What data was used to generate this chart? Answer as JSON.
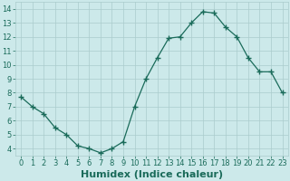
{
  "x": [
    0,
    1,
    2,
    3,
    4,
    5,
    6,
    7,
    8,
    9,
    10,
    11,
    12,
    13,
    14,
    15,
    16,
    17,
    18,
    19,
    20,
    21,
    22,
    23
  ],
  "y": [
    7.7,
    7.0,
    6.5,
    5.5,
    5.0,
    4.2,
    4.0,
    3.7,
    4.0,
    4.5,
    7.0,
    9.0,
    10.5,
    11.9,
    12.0,
    13.0,
    13.8,
    13.7,
    12.7,
    12.0,
    10.5,
    9.5,
    9.5,
    8.0
  ],
  "xlabel": "Humidex (Indice chaleur)",
  "xlim": [
    -0.5,
    23.5
  ],
  "ylim": [
    3.5,
    14.5
  ],
  "yticks": [
    4,
    5,
    6,
    7,
    8,
    9,
    10,
    11,
    12,
    13,
    14
  ],
  "xticks": [
    0,
    1,
    2,
    3,
    4,
    5,
    6,
    7,
    8,
    9,
    10,
    11,
    12,
    13,
    14,
    15,
    16,
    17,
    18,
    19,
    20,
    21,
    22,
    23
  ],
  "xtick_labels": [
    "0",
    "1",
    "2",
    "3",
    "4",
    "5",
    "6",
    "7",
    "8",
    "9",
    "10",
    "11",
    "12",
    "13",
    "14",
    "15",
    "16",
    "17",
    "18",
    "19",
    "20",
    "21",
    "22",
    "23"
  ],
  "line_color": "#1a6b5a",
  "marker": "+",
  "marker_size": 4,
  "marker_lw": 1.0,
  "bg_color": "#cce9ea",
  "grid_color": "#aacccc",
  "label_fontsize": 7,
  "tick_fontsize": 6,
  "xlabel_fontsize": 8,
  "xlabel_color": "#1a6b5a",
  "line_width": 0.9
}
